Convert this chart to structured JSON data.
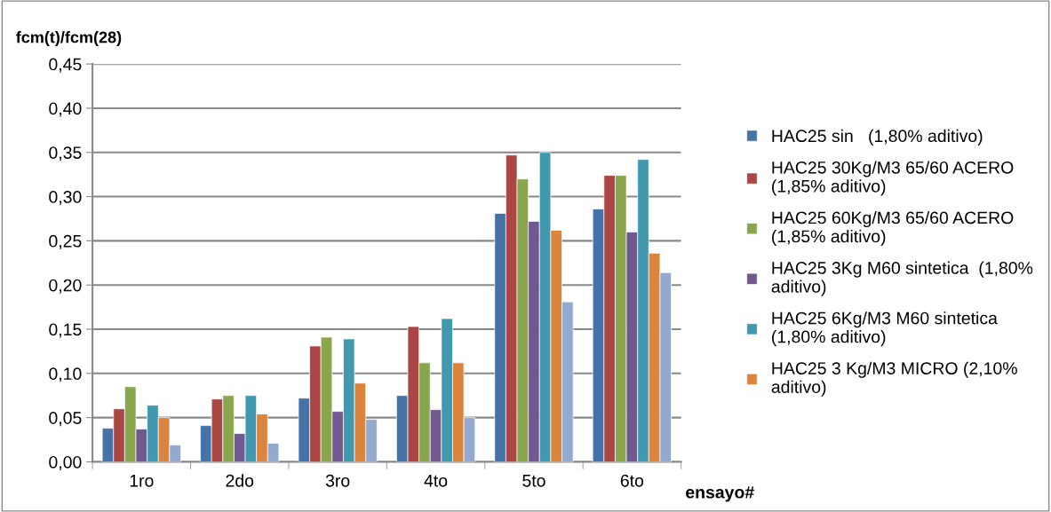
{
  "chart_data": {
    "type": "bar",
    "categories": [
      "1ro",
      "2do",
      "3ro",
      "4to",
      "5to",
      "6to"
    ],
    "ylabel": "fcm(t)/fcm(28)",
    "xlabel": "ensayo#",
    "series": [
      {
        "name": "HAC25 sin   (1,80% aditivo)",
        "color": "#4572a7",
        "values": [
          0.038,
          0.041,
          0.072,
          0.075,
          0.281,
          0.286
        ]
      },
      {
        "name": "HAC25 30Kg/M3 65/60 ACERO\n(1,85% aditivo)",
        "color": "#aa4643",
        "values": [
          0.06,
          0.071,
          0.131,
          0.153,
          0.347,
          0.324
        ]
      },
      {
        "name": "HAC25 60Kg/M3 65/60 ACERO\n(1,85% aditivo)",
        "color": "#89a54e",
        "values": [
          0.085,
          0.075,
          0.141,
          0.112,
          0.32,
          0.324
        ]
      },
      {
        "name": "HAC25 3Kg M60 sintetica  (1,80%\naditivo)",
        "color": "#71588f",
        "values": [
          0.037,
          0.032,
          0.057,
          0.059,
          0.272,
          0.26
        ]
      },
      {
        "name": "HAC25 6Kg/M3 M60 sintetica\n(1,80% aditivo)",
        "color": "#4198af",
        "values": [
          0.064,
          0.075,
          0.139,
          0.162,
          0.35,
          0.342
        ]
      },
      {
        "name": "HAC25 3 Kg/M3 MICRO (2,10%\naditivo)",
        "color": "#db843d",
        "values": [
          0.05,
          0.054,
          0.089,
          0.112,
          0.262,
          0.236
        ]
      },
      {
        "color": "#93a9cf",
        "values": [
          0.019,
          0.021,
          0.048,
          0.05,
          0.181,
          0.214
        ]
      }
    ],
    "ylim": [
      0,
      0.45
    ],
    "yticks": [
      {
        "value": 0,
        "label": "0,00"
      },
      {
        "value": 0.05,
        "label": "0,05"
      },
      {
        "value": 0.1,
        "label": "0,10"
      },
      {
        "value": 0.15,
        "label": "0,15"
      },
      {
        "value": 0.2,
        "label": "0,20"
      },
      {
        "value": 0.25,
        "label": "0,25"
      },
      {
        "value": 0.3,
        "label": "0,30"
      },
      {
        "value": 0.35,
        "label": "0,35"
      },
      {
        "value": 0.4,
        "label": "0,40"
      },
      {
        "value": 0.45,
        "label": "0,45"
      }
    ],
    "grid": "y",
    "legend": "right"
  }
}
